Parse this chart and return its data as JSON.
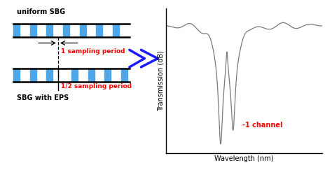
{
  "fig_width": 4.74,
  "fig_height": 2.46,
  "dpi": 100,
  "bg_color": "#ffffff",
  "sbg_stripe_color": "#4da6e8",
  "sbg_line_color": "#000000",
  "arrow_color": "#1a1aff",
  "label_color_red": "#ff0000",
  "label_color_black": "#000000",
  "uniform_sbg_label": "uniform SBG",
  "sbg_eps_label": "SBG with EPS",
  "sampling_period_label": "1 sampling period",
  "half_sampling_period_label": "1/2 sampling period",
  "channel_label": "-1 channel",
  "ylabel": "Transmission (dB)",
  "xlabel": "Wavelength (nm)"
}
